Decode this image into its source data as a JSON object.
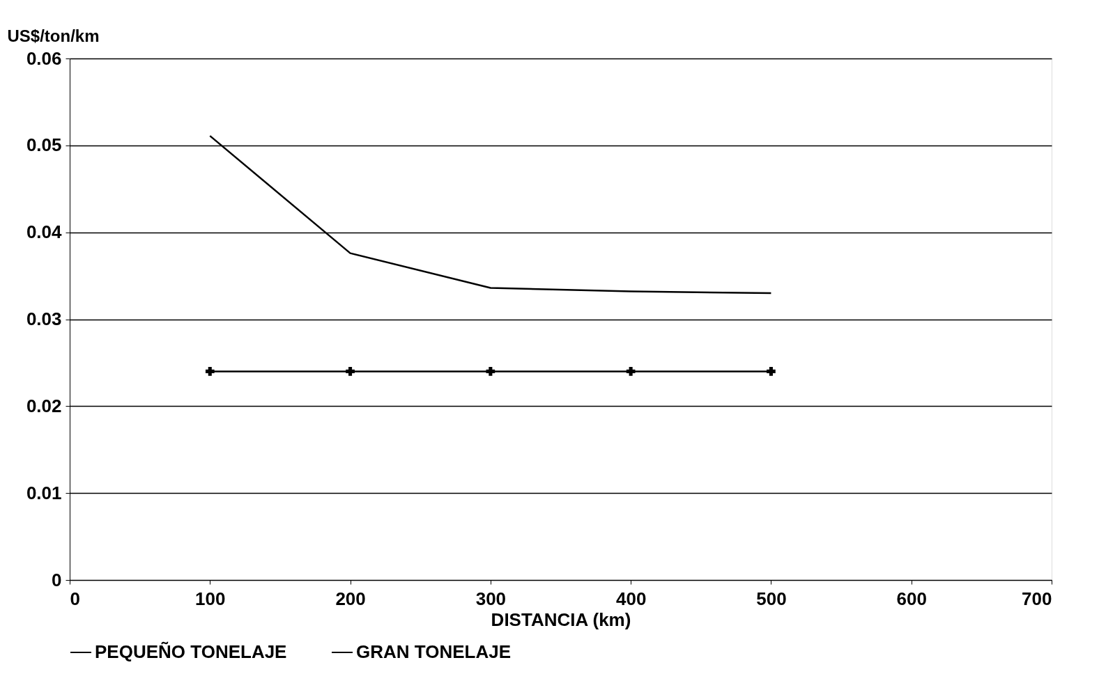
{
  "chart_data": {
    "type": "line",
    "ylabel": "US$/ton/km",
    "xlabel": "DISTANCIA (km)",
    "x": [
      100,
      200,
      300,
      400,
      500
    ],
    "series": [
      {
        "name": "PEQUEÑO TONELAJE",
        "color": "#000000",
        "marker": "none",
        "values": [
          0.0511,
          0.0376,
          0.0336,
          0.0332,
          0.033
        ]
      },
      {
        "name": "GRAN TONELAJE",
        "color": "#000000",
        "marker": "cross",
        "values": [
          0.024,
          0.024,
          0.024,
          0.024,
          0.024
        ]
      }
    ],
    "xlim": [
      0,
      700
    ],
    "xticks": [
      0,
      100,
      200,
      300,
      400,
      500,
      600,
      700
    ],
    "ylim": [
      0,
      0.06
    ],
    "yticks": [
      0,
      0.01,
      0.02,
      0.03,
      0.04,
      0.05,
      0.06
    ],
    "grid": "y",
    "legend": "bottom",
    "line_style": "solid"
  }
}
